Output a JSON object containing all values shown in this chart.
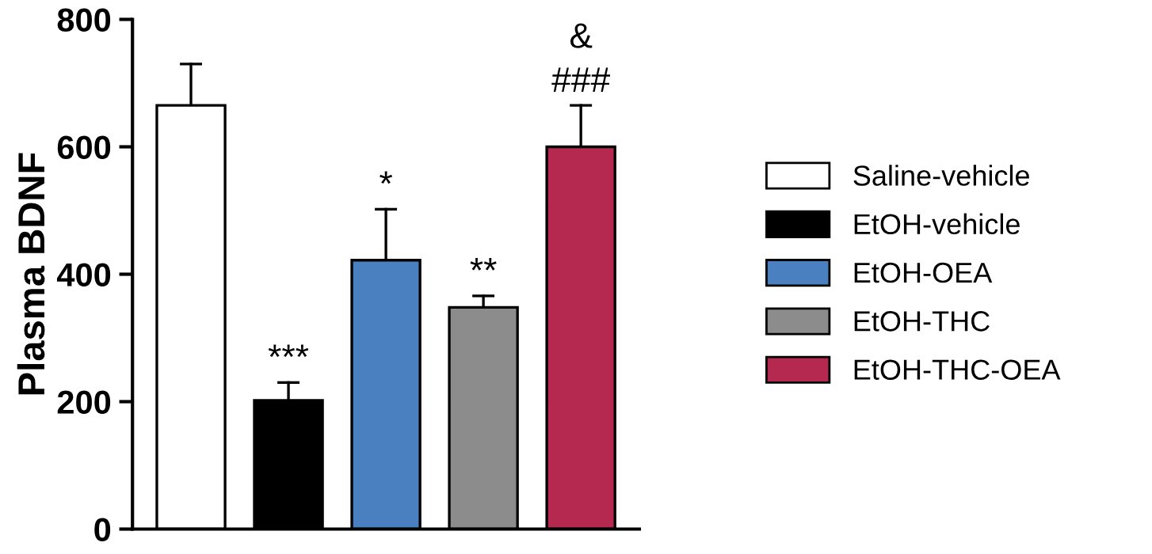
{
  "chart_data": {
    "type": "bar",
    "ylabel": "Plasma BDNF",
    "categories": [
      null,
      null,
      null,
      null,
      null
    ],
    "series": [
      {
        "name": "Saline-vehicle",
        "color": "#ffffff",
        "values": [
          665,
          null,
          null,
          null,
          null
        ],
        "errors": [
          [
            665,
            730
          ],
          null,
          null,
          null,
          null
        ]
      },
      {
        "name": "EtOH-vehicle",
        "color": "#000000",
        "values": [
          null,
          202,
          null,
          null,
          null
        ],
        "errors": [
          null,
          [
            202,
            230
          ],
          null,
          null,
          null
        ]
      },
      {
        "name": "EtOH-OEA",
        "color": "#4a7fc0",
        "values": [
          null,
          null,
          422,
          null,
          null
        ],
        "errors": [
          null,
          null,
          [
            422,
            502
          ],
          null,
          null
        ]
      },
      {
        "name": "EtOH-THC",
        "color": "#8c8c8c",
        "values": [
          null,
          null,
          null,
          348,
          null
        ],
        "errors": [
          null,
          null,
          null,
          [
            348,
            366
          ],
          null
        ]
      },
      {
        "name": "EtOH-THC-OEA",
        "color": "#b5284f",
        "values": [
          null,
          null,
          null,
          null,
          600
        ],
        "errors": [
          null,
          null,
          null,
          null,
          [
            600,
            665
          ]
        ]
      }
    ],
    "annotations": [
      {
        "text": "***",
        "y": 240
      },
      {
        "text": "*",
        "y": 512
      },
      {
        "text": "**",
        "y": 376
      },
      {
        "text": "###",
        "y": 675
      },
      "&"
    ],
    "ylim": [
      0,
      800
    ],
    "yticks": [
      0,
      200,
      400,
      600,
      800
    ],
    "legend": "right",
    "grid": false
  }
}
